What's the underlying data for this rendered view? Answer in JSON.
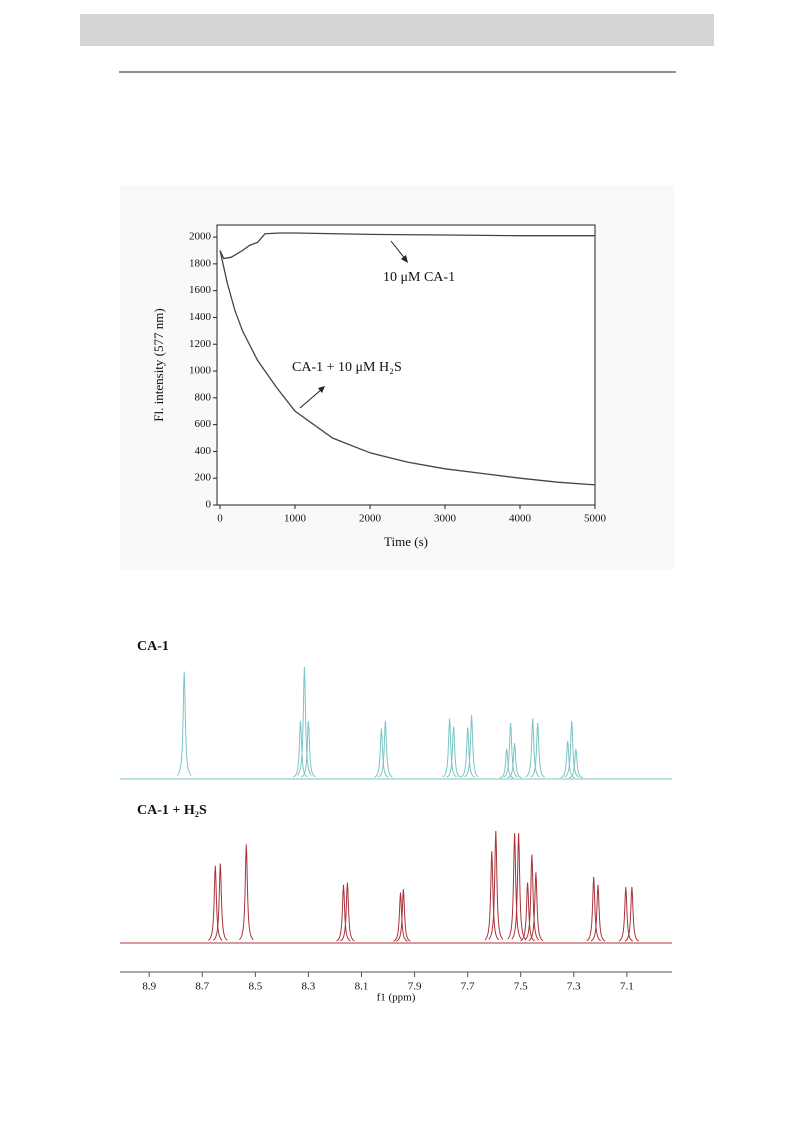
{
  "chart_data": [
    {
      "type": "line",
      "xlabel": "Time (s)",
      "ylabel": "Fl. intensity (577 nm)",
      "xlim": [
        -40,
        5000
      ],
      "ylim": [
        0,
        2090
      ],
      "xticks": [
        0,
        1000,
        2000,
        3000,
        4000,
        5000
      ],
      "yticks": [
        0,
        200,
        400,
        600,
        800,
        1000,
        1200,
        1400,
        1600,
        1800,
        2000
      ],
      "annotations": [
        "10 μM CA-1",
        "CA-1 + 10 μM H₂S"
      ],
      "series": [
        {
          "color": "#444444",
          "x": [
            0,
            50,
            150,
            300,
            400,
            500,
            600,
            800,
            1000,
            2000,
            3000,
            4000,
            5000
          ],
          "values": [
            1900,
            1840,
            1850,
            1900,
            1940,
            1960,
            2025,
            2030,
            2030,
            2020,
            2015,
            2010,
            2010
          ]
        },
        {
          "color": "#444444",
          "x": [
            0,
            100,
            200,
            300,
            500,
            750,
            1000,
            1500,
            2000,
            2500,
            3000,
            3500,
            4000,
            4500,
            5000
          ],
          "values": [
            1900,
            1650,
            1450,
            1300,
            1080,
            880,
            700,
            500,
            390,
            320,
            270,
            235,
            200,
            170,
            150
          ]
        }
      ]
    },
    {
      "type": "nmr",
      "xlabel": "f1 (ppm)",
      "xlim": [
        9.01,
        6.93
      ],
      "xticks": [
        8.9,
        8.7,
        8.5,
        8.3,
        8.1,
        7.9,
        7.7,
        7.5,
        7.3,
        7.1
      ],
      "panels": [
        {
          "label": "CA-1",
          "color": "#7cc4c6",
          "x": [
            8.768,
            8.33,
            8.315,
            8.3,
            8.025,
            8.01,
            7.768,
            7.753,
            7.7,
            7.685,
            7.553,
            7.538,
            7.523,
            7.455,
            7.436,
            7.323,
            7.308,
            7.292
          ],
          "values": [
            96,
            52,
            100,
            52,
            45,
            52,
            54,
            47,
            46,
            57,
            27,
            50,
            32,
            54,
            50,
            34,
            52,
            27
          ]
        },
        {
          "label": "CA-1 + H₂S",
          "color": "#a8343a",
          "x": [
            8.651,
            8.632,
            8.534,
            8.168,
            8.153,
            7.953,
            7.942,
            7.609,
            7.594,
            7.523,
            7.508,
            7.474,
            7.458,
            7.443,
            7.225,
            7.209,
            7.104,
            7.081
          ],
          "values": [
            69,
            71,
            88,
            52,
            54,
            45,
            48,
            82,
            100,
            98,
            98,
            54,
            79,
            63,
            59,
            52,
            50,
            50
          ]
        }
      ]
    }
  ]
}
